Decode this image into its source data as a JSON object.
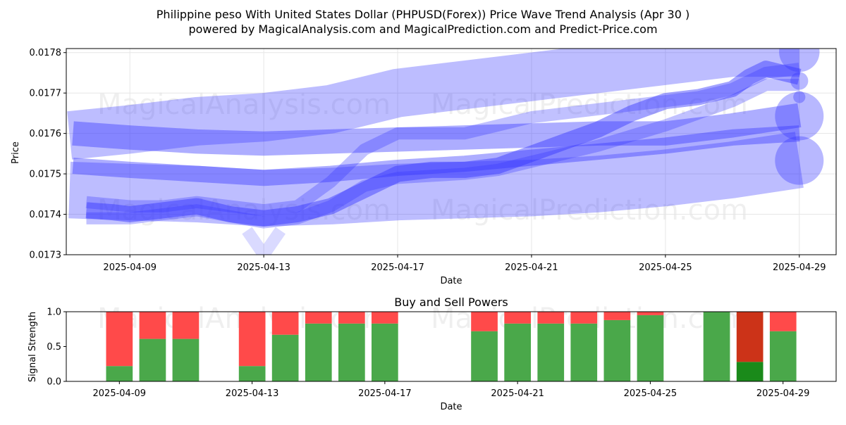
{
  "title_line1": "Philippine peso With United States Dollar (PHPUSD(Forex)) Price Wave Trend Analysis (Apr 30 )",
  "title_line2": "powered by MagicalAnalysis.com and MagicalPrediction.com and Predict-Price.com",
  "watermarks": [
    "MagicalAnalysis.com",
    "MagicalPrediction.com"
  ],
  "chart_data": [
    {
      "type": "area",
      "title": "",
      "xlabel": "Date",
      "ylabel": "Price",
      "ylim": [
        0.0173,
        0.01781
      ],
      "xlim_days": [
        -1.9,
        21.1
      ],
      "x_ticks": [
        {
          "day": 0,
          "label": "2025-04-09"
        },
        {
          "day": 4,
          "label": "2025-04-13"
        },
        {
          "day": 8,
          "label": "2025-04-17"
        },
        {
          "day": 12,
          "label": "2025-04-21"
        },
        {
          "day": 16,
          "label": "2025-04-25"
        },
        {
          "day": 20,
          "label": "2025-04-29"
        }
      ],
      "y_ticks": [
        0.0173,
        0.0174,
        0.0175,
        0.0176,
        0.0177,
        0.0178
      ],
      "y_tick_labels": [
        "0.0173",
        "0.0174",
        "0.0175",
        "0.0176",
        "0.0177",
        "0.0178"
      ],
      "grid": true,
      "series": [
        {
          "name": "long-term band",
          "x": [
            -1.8,
            0,
            2,
            4,
            6,
            8,
            10,
            12,
            14,
            16,
            18,
            20
          ],
          "values": [
            0.017595,
            0.01761,
            0.01763,
            0.01764,
            0.01766,
            0.0177,
            0.01772,
            0.01774,
            0.01776,
            0.01778,
            0.0178,
            0.0178
          ],
          "width": 0.00012,
          "opacity": 0.32
        },
        {
          "name": "upper wave",
          "x": [
            -1.7,
            0,
            2,
            4,
            6,
            8,
            10,
            12,
            14,
            16,
            18,
            20
          ],
          "values": [
            0.0176,
            0.01759,
            0.01758,
            0.017575,
            0.01758,
            0.017585,
            0.01759,
            0.017595,
            0.0176,
            0.0176,
            0.01762,
            0.017645
          ],
          "width": 6e-05,
          "opacity": 0.4
        },
        {
          "name": "lower band",
          "x": [
            -1.8,
            0,
            2,
            4,
            6,
            8,
            10,
            12,
            14,
            16,
            18,
            20
          ],
          "values": [
            0.01746,
            0.017455,
            0.01745,
            0.01744,
            0.017445,
            0.017455,
            0.01746,
            0.017465,
            0.017475,
            0.01749,
            0.01751,
            0.017535
          ],
          "width": 0.00014,
          "opacity": 0.32
        },
        {
          "name": "lower wave",
          "x": [
            -1.7,
            0,
            2,
            4,
            6,
            8,
            10,
            12,
            14,
            16,
            18,
            20
          ],
          "values": [
            0.01752,
            0.01751,
            0.0175,
            0.01749,
            0.0175,
            0.017515,
            0.017525,
            0.01754,
            0.017555,
            0.01757,
            0.01759,
            0.0176
          ],
          "width": 4e-05,
          "opacity": 0.4
        },
        {
          "name": "price path",
          "x": [
            -1.3,
            -0.5,
            0,
            1,
            2,
            3,
            4,
            5,
            6,
            7,
            8,
            9,
            10,
            11,
            12,
            13,
            14,
            15,
            16,
            17,
            18,
            18.5,
            19,
            19.5,
            20
          ],
          "values": [
            0.01741,
            0.017405,
            0.0174,
            0.01741,
            0.01742,
            0.0174,
            0.01739,
            0.0174,
            0.01742,
            0.01746,
            0.0175,
            0.01751,
            0.01751,
            0.01752,
            0.01755,
            0.01758,
            0.01761,
            0.01765,
            0.01768,
            0.01769,
            0.01771,
            0.01774,
            0.01776,
            0.01775,
            0.01774
          ],
          "width": 4e-05,
          "opacity": 0.45
        },
        {
          "name": "forecast upper",
          "x": [
            -1.3,
            0,
            1,
            2,
            4,
            5,
            6,
            7,
            8,
            10,
            11,
            12,
            14,
            16,
            17,
            18,
            19,
            20
          ],
          "values": [
            0.01743,
            0.01742,
            0.01742,
            0.01743,
            0.01741,
            0.01742,
            0.01748,
            0.01756,
            0.0176,
            0.0176,
            0.01762,
            0.01764,
            0.01766,
            0.01768,
            0.01769,
            0.01771,
            0.01775,
            0.01776
          ],
          "width": 3e-05,
          "opacity": 0.3
        },
        {
          "name": "forecast lower",
          "x": [
            -1.3,
            0,
            1,
            2,
            4,
            5,
            6,
            7,
            8,
            10,
            11,
            12,
            14,
            16,
            17,
            18,
            19,
            20
          ],
          "values": [
            0.01739,
            0.01739,
            0.0174,
            0.01741,
            0.01738,
            0.01739,
            0.01742,
            0.01747,
            0.01749,
            0.0175,
            0.01751,
            0.01753,
            0.01757,
            0.01762,
            0.01765,
            0.01768,
            0.01772,
            0.01772
          ],
          "width": 3e-05,
          "opacity": 0.3
        },
        {
          "name": "dip",
          "x": [
            3.5,
            4,
            4.5
          ],
          "values": [
            0.01736,
            0.0173,
            0.01736
          ],
          "width": 3e-05,
          "opacity": 0.18
        }
      ],
      "end_points": [
        {
          "day": 20,
          "value": 0.017802,
          "radius": 5e-05
        },
        {
          "day": 20,
          "value": 0.017643,
          "radius": 6e-05
        },
        {
          "day": 20,
          "value": 0.017533,
          "radius": 6e-05
        },
        {
          "day": 20,
          "value": 0.01773,
          "radius": 2.2e-05
        },
        {
          "day": 20,
          "value": 0.01769,
          "radius": 1.5e-05
        }
      ]
    },
    {
      "type": "bar",
      "title": "Buy and Sell Powers",
      "xlabel": "Date",
      "ylabel": "Signal Strength",
      "ylim": [
        0,
        1.0
      ],
      "xlim_days": [
        -1.6,
        21.6
      ],
      "x_ticks": [
        {
          "day": 0,
          "label": "2025-04-09"
        },
        {
          "day": 4,
          "label": "2025-04-13"
        },
        {
          "day": 8,
          "label": "2025-04-17"
        },
        {
          "day": 12,
          "label": "2025-04-21"
        },
        {
          "day": 16,
          "label": "2025-04-25"
        },
        {
          "day": 20,
          "label": "2025-04-29"
        }
      ],
      "y_ticks": [
        0.0,
        0.5,
        1.0
      ],
      "y_tick_labels": [
        "0.0",
        "0.5",
        "1.0"
      ],
      "series": [
        {
          "name": "Buy",
          "color": "#4aa84a"
        },
        {
          "name": "Sell",
          "color": "#ff4a4a"
        }
      ],
      "bars": [
        {
          "day": 0,
          "buy": 0.22
        },
        {
          "day": 1,
          "buy": 0.61
        },
        {
          "day": 2,
          "buy": 0.61
        },
        {
          "day": 4,
          "buy": 0.22
        },
        {
          "day": 5,
          "buy": 0.67
        },
        {
          "day": 6,
          "buy": 0.83
        },
        {
          "day": 7,
          "buy": 0.83
        },
        {
          "day": 8,
          "buy": 0.83
        },
        {
          "day": 11,
          "buy": 0.72
        },
        {
          "day": 12,
          "buy": 0.83
        },
        {
          "day": 13,
          "buy": 0.83
        },
        {
          "day": 14,
          "buy": 0.83
        },
        {
          "day": 15,
          "buy": 0.88
        },
        {
          "day": 16,
          "buy": 0.95
        },
        {
          "day": 18,
          "buy": 1.0
        },
        {
          "day": 19,
          "buy": 0.28,
          "buy_color": "#1a8a1a",
          "sell_color": "#cc3318"
        },
        {
          "day": 20,
          "buy": 0.72
        }
      ]
    }
  ]
}
